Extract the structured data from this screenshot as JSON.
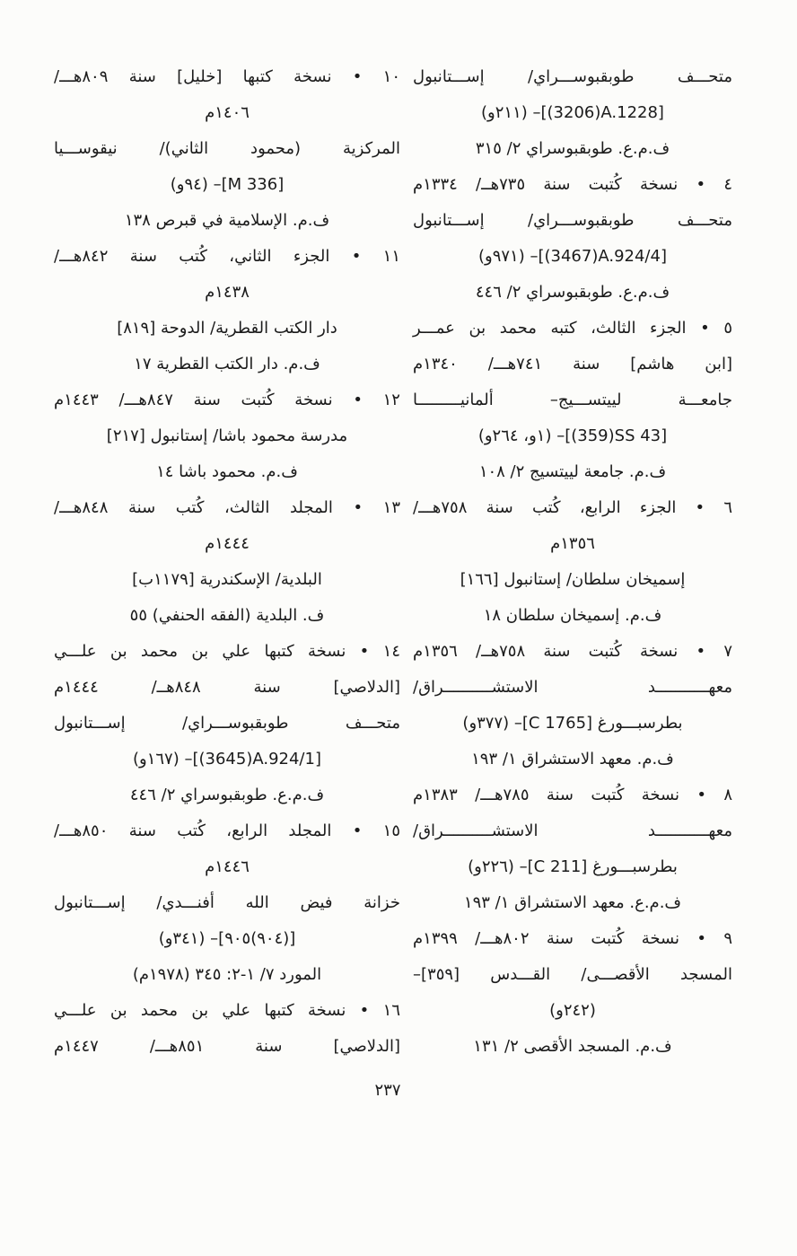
{
  "page": {
    "number": "٢٣٧",
    "bullet": "•",
    "colors": {
      "paper": "#fcfcfa",
      "ink": "#1b1b1b"
    },
    "columns": {
      "right": {
        "lines": [
          {
            "text": "متحـــف طوبقبوســـراي/ إســـتانبول",
            "align": "justify"
          },
          {
            "text": "⁦[(3206)A.1228]⁩– (٢١١و)",
            "align": "center"
          },
          {
            "text": "ف.م.ع. طوبقبوسراي ٢/ ٣١٥",
            "align": "center"
          },
          {
            "num": "٤",
            "text": "نسخة كُتبت سنة ٧٣٥هــ/ ١٣٣٤م",
            "align": "justify"
          },
          {
            "text": "متحـــف طوبقبوســـراي/ إســـتانبول",
            "align": "justify"
          },
          {
            "text": "⁦[(3467)A.924/4]⁩– (٩٧١و)",
            "align": "center"
          },
          {
            "text": "ف.م.ع. طوبقبوسراي ٢/ ٤٤٦",
            "align": "center"
          },
          {
            "num": "٥",
            "text": "الجزء الثالث، كتبه محمد بن عمـــر",
            "align": "justify"
          },
          {
            "text": "[ابن هاشم] سنة ٧٤١هـــ/ ١٣٤٠م",
            "align": "justify"
          },
          {
            "text": "جامعـــة لييتســـيج– ألمانيـــــــــا",
            "align": "justify"
          },
          {
            "text": "⁦[(359)SS 43]⁩– (١و، ٢٦٤و)",
            "align": "center"
          },
          {
            "text": "ف.م. جامعة لييتسيج ٢/ ١٠٨",
            "align": "center"
          },
          {
            "num": "٦",
            "text": "الجزء الرابع، كُتب سنة ٧٥٨هـــ/",
            "align": "justify"
          },
          {
            "text": "١٣٥٦م",
            "align": "center"
          },
          {
            "text": "إسميخان سلطان/ إستانبول [١٦٦]",
            "align": "center"
          },
          {
            "text": "ف.م. إسميخان سلطان ١٨",
            "align": "center"
          },
          {
            "num": "٧",
            "text": "نسخة كُتبت سنة ٧٥٨هــ/ ١٣٥٦م",
            "align": "justify"
          },
          {
            "text": "معهـــــــــــد الاستشــــــــــراق/",
            "align": "justify"
          },
          {
            "text": "بطرسبـــورغ ⁦[C 1765]⁩– (٣٧٧و)",
            "align": "center"
          },
          {
            "text": "ف.م. معهد الاستشراق ١/ ١٩٣",
            "align": "center"
          },
          {
            "num": "٨",
            "text": "نسخة كُتبت سنة ٧٨٥هـــ/ ١٣٨٣م",
            "align": "justify"
          },
          {
            "text": "معهـــــــــــد الاستشــــــــــراق/",
            "align": "justify"
          },
          {
            "text": "بطرسبـــورغ ⁦[C 211]⁩– (٢٢٦و)",
            "align": "center"
          },
          {
            "text": "ف.م.ع. معهد الاستشراق ١/ ١٩٣",
            "align": "center"
          },
          {
            "num": "٩",
            "text": "نسخة كُتبت سنة ٨٠٢هـــ/ ١٣٩٩م",
            "align": "justify"
          },
          {
            "text": "المسجد الأقصـــى/ القـــدس [٣٥٩]–",
            "align": "justify"
          },
          {
            "text": "(٢٤٢و)",
            "align": "center"
          },
          {
            "text": "ف.م. المسجد الأقصى ٢/ ١٣١",
            "align": "center"
          }
        ]
      },
      "left": {
        "lines": [
          {
            "num": "١٠",
            "text": "نسخة كتبها [خليل] سنة ٨٠٩هـــ/",
            "align": "justify"
          },
          {
            "text": "١٤٠٦م",
            "align": "center"
          },
          {
            "text": "المركزية (محمود الثاني)/ نيقوســـيا",
            "align": "justify"
          },
          {
            "text": "⁦[M 336]⁩– (٩٤و)",
            "align": "center"
          },
          {
            "text": "ف.م. الإسلامية في قبرص ١٣٨",
            "align": "center"
          },
          {
            "num": "١١",
            "text": "الجزء الثاني، كُتب سنة ٨٤٢هـــ/",
            "align": "justify"
          },
          {
            "text": "١٤٣٨م",
            "align": "center"
          },
          {
            "text": "دار الكتب القطرية/ الدوحة [٨١٩]",
            "align": "center"
          },
          {
            "text": "ف.م. دار الكتب القطرية ١٧",
            "align": "center"
          },
          {
            "num": "١٢",
            "text": "نسخة كُتبت سنة ٨٤٧هـــ/ ١٤٤٣م",
            "align": "justify"
          },
          {
            "text": "مدرسة محمود باشا/ إستانبول [٢١٧]",
            "align": "center"
          },
          {
            "text": "ف.م. محمود باشا ١٤",
            "align": "center"
          },
          {
            "num": "١٣",
            "text": "المجلد الثالث، كُتب سنة ٨٤٨هـــ/",
            "align": "justify"
          },
          {
            "text": "١٤٤٤م",
            "align": "center"
          },
          {
            "text": "البلدية/ الإسكندرية [١١٧٩ب]",
            "align": "center"
          },
          {
            "text": "ف. البلدية (الفقه الحنفي) ٥٥",
            "align": "center"
          },
          {
            "num": "١٤",
            "text": "نسخة كتبها علي بن محمد بن علـــي",
            "align": "justify"
          },
          {
            "text": "[الدلاصي] سنة ٨٤٨هــ/ ١٤٤٤م",
            "align": "justify"
          },
          {
            "text": "متحـــف طوبقبوســـراي/ إســـتانبول",
            "align": "justify"
          },
          {
            "text": "⁦[(3645)A.924/1]⁩– (١٦٧و)",
            "align": "center"
          },
          {
            "text": "ف.م.ع. طوبقبوسراي ٢/ ٤٤٦",
            "align": "center"
          },
          {
            "num": "١٥",
            "text": "المجلد الرابع، كُتب سنة ٨٥٠هـــ/",
            "align": "justify"
          },
          {
            "text": "١٤٤٦م",
            "align": "center"
          },
          {
            "text": "خزانة فيض الله أفنـــدي/ إســـتانبول",
            "align": "justify"
          },
          {
            "text": "[(٩٠٤)٩٠٥]– (٣٤١و)",
            "align": "center"
          },
          {
            "text": "المورد ٧/ ١-٢: ٣٤٥ (١٩٧٨م)",
            "align": "center"
          },
          {
            "num": "١٦",
            "text": "نسخة كتبها علي بن محمد بن علـــي",
            "align": "justify"
          },
          {
            "text": "[الدلاصي] سنة ٨٥١هـــ/ ١٤٤٧م",
            "align": "justify"
          }
        ]
      }
    }
  }
}
